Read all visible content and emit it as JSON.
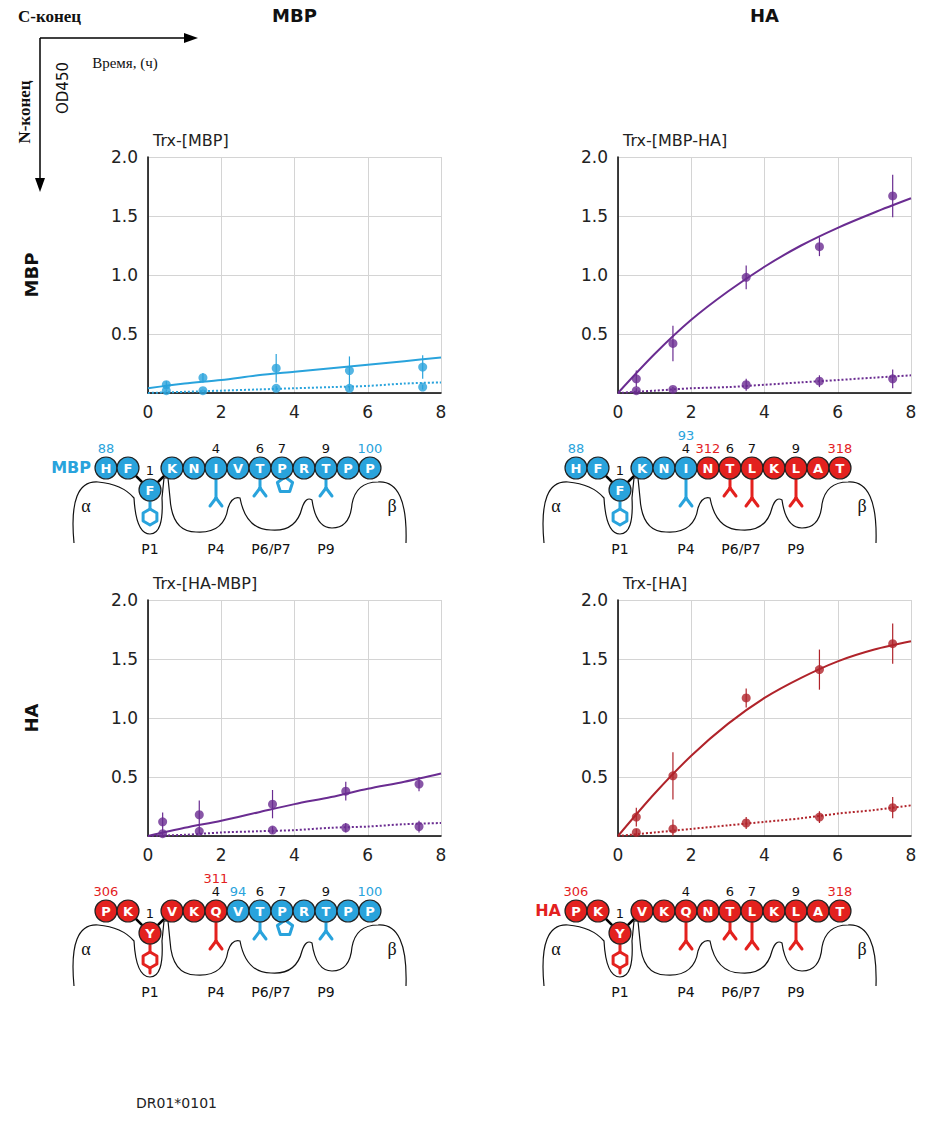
{
  "header": {
    "corner_top": "C-конец",
    "corner_left": "N-конец",
    "x_axis_label": "Время, (ч)",
    "y_axis_label": "OD450",
    "columns": [
      "MBP",
      "HA"
    ],
    "rows": [
      "MBP",
      "HA"
    ],
    "footer": "DR01*0101"
  },
  "chart_data": [
    {
      "type": "line",
      "title": "Trx-[MBP]",
      "color": "#29a3dc",
      "grid": true,
      "xlim": [
        0,
        8
      ],
      "xticks": [
        0,
        2,
        4,
        6,
        8
      ],
      "ylim": [
        0,
        2
      ],
      "yticks": [
        0.5,
        {
          "value": 1,
          "label": "1.0"
        },
        1.5,
        {
          "value": 2,
          "label": "2.0"
        }
      ],
      "series": [
        {
          "type": "line",
          "marker": "none",
          "line_style": "solid",
          "x": [
            0,
            1,
            2,
            3,
            4,
            5,
            6,
            7,
            8
          ],
          "values": [
            0.04,
            0.08,
            0.11,
            0.15,
            0.18,
            0.21,
            0.24,
            0.27,
            0.3
          ]
        },
        {
          "type": "scatter",
          "marker": "circle",
          "x": [
            0.5,
            1.5,
            3.5,
            5.5,
            7.5
          ],
          "values": [
            0.07,
            0.13,
            0.21,
            0.19,
            0.22
          ],
          "errors": [
            0.03,
            0.04,
            0.12,
            0.12,
            0.1
          ]
        },
        {
          "type": "line",
          "marker": "none",
          "line_style": "dotted",
          "x": [
            0,
            1,
            2,
            3,
            4,
            5,
            6,
            7,
            8
          ],
          "values": [
            0,
            0.01,
            0.02,
            0.03,
            0.04,
            0.05,
            0.06,
            0.08,
            0.09
          ]
        },
        {
          "type": "scatter",
          "marker": "circle",
          "x": [
            0.5,
            1.5,
            3.5,
            5.5,
            7.5
          ],
          "values": [
            0.02,
            0.02,
            0.04,
            0.04,
            0.05
          ],
          "errors": [
            0.01,
            0.01,
            0.02,
            0.02,
            0.02
          ]
        }
      ]
    },
    {
      "type": "line",
      "title": "Trx-[MBP-HA]",
      "color": "#6a2c91",
      "grid": true,
      "xlim": [
        0,
        8
      ],
      "xticks": [
        0,
        2,
        4,
        6,
        8
      ],
      "ylim": [
        0,
        2
      ],
      "yticks": [
        0.5,
        {
          "value": 1,
          "label": "1.0"
        },
        1.5,
        {
          "value": 2,
          "label": "2.0"
        }
      ],
      "series": [
        {
          "type": "line",
          "marker": "none",
          "line_style": "solid",
          "x": [
            0,
            1,
            2,
            3,
            4,
            5,
            6,
            7,
            8
          ],
          "values": [
            0,
            0.33,
            0.62,
            0.86,
            1.07,
            1.25,
            1.4,
            1.53,
            1.65
          ]
        },
        {
          "type": "scatter",
          "marker": "circle",
          "x": [
            0.5,
            1.5,
            3.5,
            5.5,
            7.5
          ],
          "values": [
            0.12,
            0.42,
            0.98,
            1.24,
            1.67
          ],
          "errors": [
            0.07,
            0.15,
            0.1,
            0.08,
            0.18
          ]
        },
        {
          "type": "line",
          "marker": "none",
          "line_style": "dotted",
          "x": [
            0,
            1,
            2,
            3,
            4,
            5,
            6,
            7,
            8
          ],
          "values": [
            0,
            0.02,
            0.04,
            0.05,
            0.07,
            0.09,
            0.11,
            0.13,
            0.15
          ]
        },
        {
          "type": "scatter",
          "marker": "circle",
          "x": [
            0.5,
            1.5,
            3.5,
            5.5,
            7.5
          ],
          "values": [
            0.02,
            0.03,
            0.07,
            0.1,
            0.12
          ],
          "errors": [
            0.02,
            0.02,
            0.05,
            0.05,
            0.08
          ]
        }
      ]
    },
    {
      "type": "line",
      "title": "Trx-[HA-MBP]",
      "color": "#6a2c91",
      "grid": true,
      "xlim": [
        0,
        8
      ],
      "xticks": [
        0,
        2,
        4,
        6,
        8
      ],
      "ylim": [
        0,
        2
      ],
      "yticks": [
        0.5,
        {
          "value": 1,
          "label": "1.0"
        },
        1.5,
        {
          "value": 2,
          "label": "2.0"
        }
      ],
      "series": [
        {
          "type": "line",
          "marker": "none",
          "line_style": "solid",
          "x": [
            0,
            1,
            2,
            3,
            4,
            5,
            6,
            7,
            8
          ],
          "values": [
            0,
            0.07,
            0.13,
            0.2,
            0.27,
            0.33,
            0.4,
            0.46,
            0.53
          ]
        },
        {
          "type": "scatter",
          "marker": "circle",
          "x": [
            0.4,
            1.4,
            3.4,
            5.4,
            7.4
          ],
          "values": [
            0.12,
            0.18,
            0.27,
            0.38,
            0.44
          ],
          "errors": [
            0.08,
            0.12,
            0.12,
            0.08,
            0.06
          ]
        },
        {
          "type": "line",
          "marker": "none",
          "line_style": "dotted",
          "x": [
            0,
            1,
            2,
            3,
            4,
            5,
            6,
            7,
            8
          ],
          "values": [
            0,
            0.01,
            0.03,
            0.04,
            0.05,
            0.07,
            0.08,
            0.1,
            0.11
          ]
        },
        {
          "type": "scatter",
          "marker": "circle",
          "x": [
            0.4,
            1.4,
            3.4,
            5.4,
            7.4
          ],
          "values": [
            0.02,
            0.04,
            0.05,
            0.07,
            0.08
          ],
          "errors": [
            0.02,
            0.02,
            0.03,
            0.04,
            0.05
          ]
        }
      ]
    },
    {
      "type": "line",
      "title": "Trx-[HA]",
      "color": "#b0232a",
      "grid": true,
      "xlim": [
        0,
        8
      ],
      "xticks": [
        0,
        2,
        4,
        6,
        8
      ],
      "ylim": [
        0,
        2
      ],
      "yticks": [
        0.5,
        {
          "value": 1,
          "label": "1.0"
        },
        1.5,
        {
          "value": 2,
          "label": "2.0"
        }
      ],
      "series": [
        {
          "type": "line",
          "marker": "none",
          "line_style": "solid",
          "x": [
            0,
            1,
            2,
            3,
            4,
            5,
            6,
            7,
            8
          ],
          "values": [
            0,
            0.36,
            0.68,
            0.95,
            1.17,
            1.34,
            1.48,
            1.58,
            1.65
          ]
        },
        {
          "type": "scatter",
          "marker": "circle",
          "x": [
            0.5,
            1.5,
            3.5,
            5.5,
            7.5
          ],
          "values": [
            0.16,
            0.51,
            1.17,
            1.41,
            1.63
          ],
          "errors": [
            0.08,
            0.2,
            0.08,
            0.17,
            0.17
          ]
        },
        {
          "type": "line",
          "marker": "none",
          "line_style": "dotted",
          "x": [
            0,
            1,
            2,
            3,
            4,
            5,
            6,
            7,
            8
          ],
          "values": [
            0,
            0.03,
            0.06,
            0.09,
            0.12,
            0.15,
            0.19,
            0.22,
            0.26
          ]
        },
        {
          "type": "scatter",
          "marker": "circle",
          "x": [
            0.5,
            1.5,
            3.5,
            5.5,
            7.5
          ],
          "values": [
            0.03,
            0.06,
            0.11,
            0.16,
            0.24
          ],
          "errors": [
            0.03,
            0.08,
            0.05,
            0.05,
            0.09
          ]
        }
      ]
    }
  ],
  "sources": {
    "MBP": "#29a3dc",
    "HA": "#e3211e"
  },
  "groove": {
    "alpha": "α",
    "beta": "β"
  },
  "pockets": [
    {
      "label": "P1",
      "positions": [
        1
      ]
    },
    {
      "label": "P4",
      "positions": [
        4
      ]
    },
    {
      "label": "P6/P7",
      "positions": [
        6,
        7
      ]
    },
    {
      "label": "P9",
      "positions": [
        9
      ]
    }
  ],
  "peptides": [
    {
      "label": "MBP",
      "residues": [
        {
          "aa": "H",
          "source": "MBP",
          "number": 88
        },
        {
          "aa": "F",
          "source": "MBP"
        },
        {
          "aa": "F",
          "source": "MBP",
          "pocket": 1
        },
        {
          "aa": "K",
          "source": "MBP"
        },
        {
          "aa": "N",
          "source": "MBP"
        },
        {
          "aa": "I",
          "source": "MBP",
          "pocket": 4
        },
        {
          "aa": "V",
          "source": "MBP"
        },
        {
          "aa": "T",
          "source": "MBP",
          "pocket": 6
        },
        {
          "aa": "P",
          "source": "MBP",
          "pocket": 7
        },
        {
          "aa": "R",
          "source": "MBP"
        },
        {
          "aa": "T",
          "source": "MBP",
          "pocket": 9
        },
        {
          "aa": "P",
          "source": "MBP"
        },
        {
          "aa": "P",
          "source": "MBP",
          "number": 100
        }
      ]
    },
    {
      "residues": [
        {
          "aa": "H",
          "source": "MBP",
          "number": 88
        },
        {
          "aa": "F",
          "source": "MBP"
        },
        {
          "aa": "F",
          "source": "MBP",
          "pocket": 1
        },
        {
          "aa": "K",
          "source": "MBP"
        },
        {
          "aa": "N",
          "source": "MBP"
        },
        {
          "aa": "I",
          "source": "MBP",
          "pocket": 4,
          "number": 93
        },
        {
          "aa": "N",
          "source": "HA",
          "number": 312
        },
        {
          "aa": "T",
          "source": "HA",
          "pocket": 6
        },
        {
          "aa": "L",
          "source": "HA",
          "pocket": 7
        },
        {
          "aa": "K",
          "source": "HA"
        },
        {
          "aa": "L",
          "source": "HA",
          "pocket": 9
        },
        {
          "aa": "A",
          "source": "HA"
        },
        {
          "aa": "T",
          "source": "HA",
          "number": 318
        }
      ]
    },
    {
      "residues": [
        {
          "aa": "P",
          "source": "HA",
          "number": 306
        },
        {
          "aa": "K",
          "source": "HA"
        },
        {
          "aa": "Y",
          "source": "HA",
          "pocket": 1
        },
        {
          "aa": "V",
          "source": "HA"
        },
        {
          "aa": "K",
          "source": "HA"
        },
        {
          "aa": "Q",
          "source": "HA",
          "pocket": 4,
          "number": 311
        },
        {
          "aa": "V",
          "source": "MBP",
          "number": 94
        },
        {
          "aa": "T",
          "source": "MBP",
          "pocket": 6
        },
        {
          "aa": "P",
          "source": "MBP",
          "pocket": 7
        },
        {
          "aa": "R",
          "source": "MBP"
        },
        {
          "aa": "T",
          "source": "MBP",
          "pocket": 9
        },
        {
          "aa": "P",
          "source": "MBP"
        },
        {
          "aa": "P",
          "source": "MBP",
          "number": 100
        }
      ]
    },
    {
      "label": "HA",
      "residues": [
        {
          "aa": "P",
          "source": "HA",
          "number": 306
        },
        {
          "aa": "K",
          "source": "HA"
        },
        {
          "aa": "Y",
          "source": "HA",
          "pocket": 1
        },
        {
          "aa": "V",
          "source": "HA"
        },
        {
          "aa": "K",
          "source": "HA"
        },
        {
          "aa": "Q",
          "source": "HA",
          "pocket": 4
        },
        {
          "aa": "N",
          "source": "HA"
        },
        {
          "aa": "T",
          "source": "HA",
          "pocket": 6
        },
        {
          "aa": "L",
          "source": "HA",
          "pocket": 7
        },
        {
          "aa": "K",
          "source": "HA"
        },
        {
          "aa": "L",
          "source": "HA",
          "pocket": 9
        },
        {
          "aa": "A",
          "source": "HA"
        },
        {
          "aa": "T",
          "source": "HA",
          "number": 318
        }
      ]
    }
  ]
}
